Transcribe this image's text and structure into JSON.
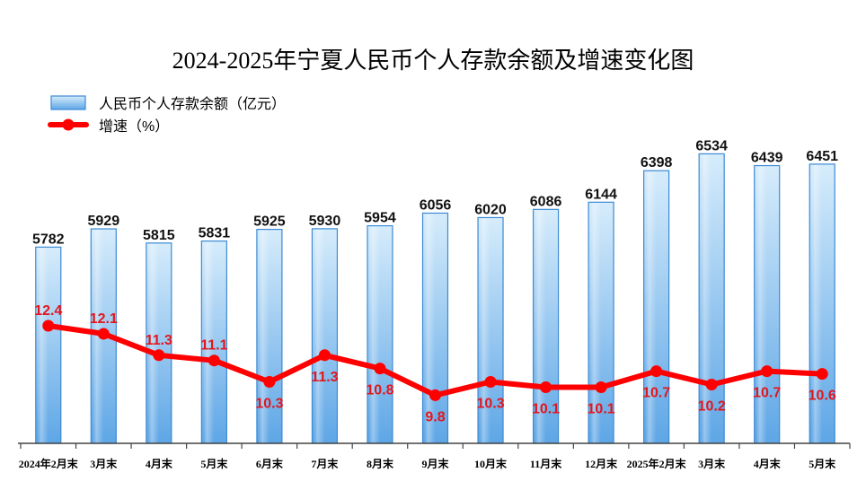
{
  "chart_data": {
    "type": "bar",
    "title": "2024-2025年宁夏人民币个人存款余额及增速变化图",
    "categories": [
      "2024年2月末",
      "3月末",
      "4月末",
      "5月末",
      "6月末",
      "7月末",
      "8月末",
      "9月末",
      "10月末",
      "11月末",
      "12月末",
      "2025年2月末",
      "3月末",
      "4月末",
      "5月末"
    ],
    "series": [
      {
        "name": "人民币个人存款余额（亿元）",
        "type": "bar",
        "values": [
          5782,
          5929,
          5815,
          5831,
          5925,
          5930,
          5954,
          6056,
          6020,
          6086,
          6144,
          6398,
          6534,
          6439,
          6451
        ]
      },
      {
        "name": "增速（%）",
        "type": "line",
        "values": [
          12.4,
          12.1,
          11.3,
          11.1,
          10.3,
          11.3,
          10.8,
          9.8,
          10.3,
          10.1,
          10.1,
          10.7,
          10.2,
          10.7,
          10.6
        ]
      }
    ],
    "ylim": [
      4200,
      7000
    ],
    "y2lim": [
      8,
      21
    ],
    "grid": false,
    "legend": "top-left",
    "colors": {
      "bar_top": "#d6ecfb",
      "bar_bottom": "#5ea6e6",
      "bar_edge": "#3d8ad4",
      "line": "#ff0000",
      "line_label": "#e3161d",
      "axis": "#444444"
    }
  }
}
